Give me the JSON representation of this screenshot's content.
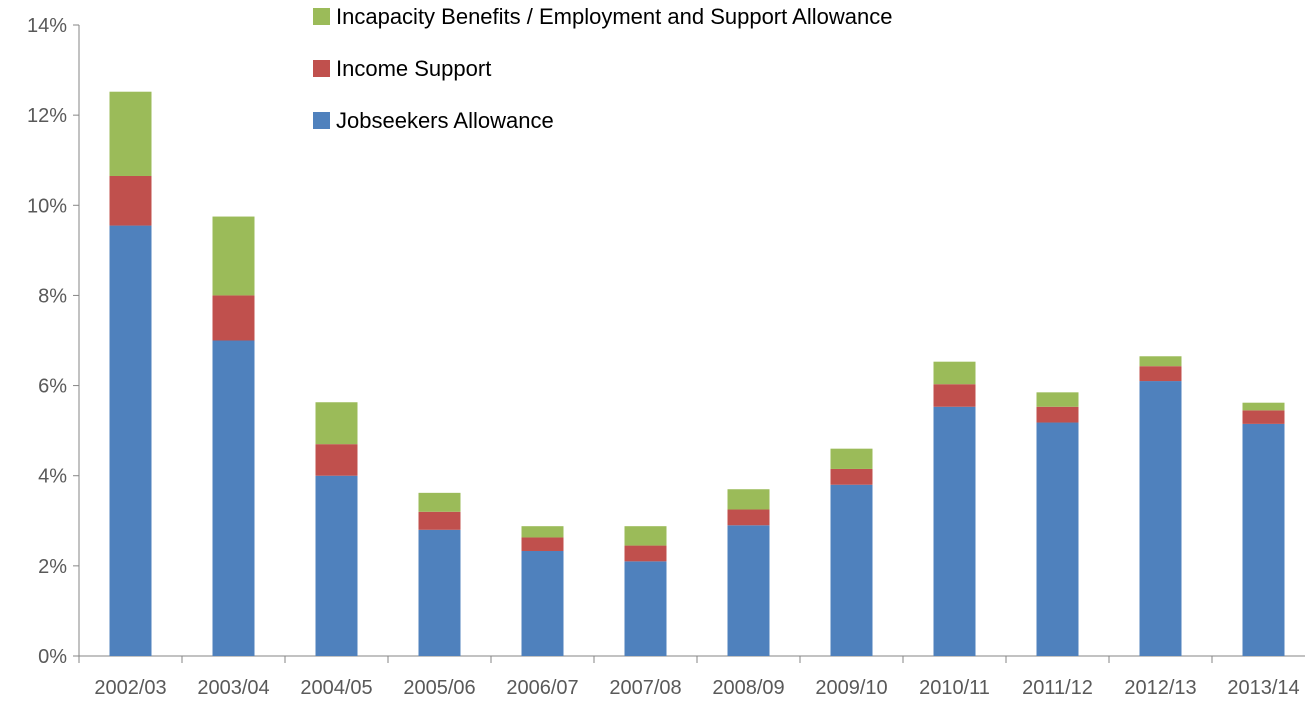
{
  "chart_data": {
    "type": "bar",
    "stacked": true,
    "categories": [
      "2002/03",
      "2003/04",
      "2004/05",
      "2005/06",
      "2006/07",
      "2007/08",
      "2008/09",
      "2009/10",
      "2010/11",
      "2011/12",
      "2012/13",
      "2013/14"
    ],
    "series": [
      {
        "name": "Jobseekers Allowance",
        "color": "#4f81bd",
        "values": [
          9.55,
          7.0,
          4.0,
          2.8,
          2.33,
          2.1,
          2.9,
          3.8,
          5.53,
          5.18,
          6.1,
          5.15
        ]
      },
      {
        "name": "Income Support",
        "color": "#c0504d",
        "values": [
          1.1,
          1.0,
          0.7,
          0.4,
          0.3,
          0.35,
          0.35,
          0.35,
          0.5,
          0.35,
          0.33,
          0.3
        ]
      },
      {
        "name": "Incapacity Benefits / Employment and Support Allowance",
        "color": "#9bbb59",
        "values": [
          1.87,
          1.75,
          0.93,
          0.42,
          0.25,
          0.43,
          0.45,
          0.45,
          0.5,
          0.32,
          0.22,
          0.17
        ]
      }
    ],
    "legend_order": [
      2,
      1,
      0
    ],
    "ylim": [
      0,
      14
    ],
    "yticks": [
      0,
      2,
      4,
      6,
      8,
      10,
      12,
      14
    ],
    "ytick_labels": [
      "0%",
      "2%",
      "4%",
      "6%",
      "8%",
      "10%",
      "12%",
      "14%"
    ],
    "legend_position": "top-center",
    "grid": false,
    "title": "",
    "xlabel": "",
    "ylabel": ""
  }
}
